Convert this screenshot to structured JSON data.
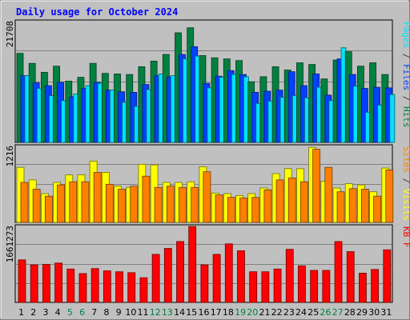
{
  "chart_data": {
    "type": "bar",
    "title": "Daily usage for October 2024",
    "x": [
      "1",
      "2",
      "3",
      "4",
      "5",
      "6",
      "7",
      "8",
      "9",
      "10",
      "11",
      "12",
      "13",
      "14",
      "15",
      "16",
      "17",
      "18",
      "19",
      "20",
      "21",
      "22",
      "23",
      "24",
      "25",
      "26",
      "27",
      "28",
      "29",
      "30",
      "31"
    ],
    "weekend_days": [
      "5",
      "6",
      "12",
      "13",
      "19",
      "20",
      "26",
      "27"
    ],
    "panels": [
      {
        "id": "hits",
        "scale_label": "21708",
        "ylim": [
          0,
          21708
        ],
        "series": [
          {
            "name": "Hits",
            "color": "#008040",
            "values": [
              16000,
              14200,
              12600,
              13700,
              11000,
              11700,
              14200,
              12400,
              12300,
              12200,
              13600,
              14600,
              15800,
              19700,
              20600,
              15600,
              15200,
              15000,
              14700,
              10900,
              11800,
              13600,
              13000,
              14300,
              14000,
              11400,
              14800,
              16300,
              13700,
              14300,
              12200
            ]
          },
          {
            "name": "Files",
            "color": "#0040ff",
            "values": [
              12000,
              10700,
              10200,
              10800,
              8200,
              9700,
              10800,
              9400,
              9100,
              9000,
              10400,
              12000,
              11800,
              15800,
              17200,
              10600,
              11900,
              12900,
              12200,
              9000,
              9200,
              9400,
              12700,
              10200,
              12300,
              8500,
              15000,
              12200,
              9700,
              9900,
              9800
            ]
          },
          {
            "name": "Pages",
            "color": "#00e0ff",
            "values": [
              12000,
              9700,
              8400,
              7500,
              8700,
              10200,
              10600,
              9400,
              7200,
              6500,
              9500,
              12300,
              12000,
              15000,
              15500,
              9800,
              11700,
              12200,
              11800,
              7000,
              7400,
              8100,
              8400,
              8000,
              9900,
              7500,
              17000,
              10100,
              5400,
              6700,
              8600
            ]
          }
        ],
        "axis_label": [
          {
            "text": "Pages",
            "color": "#00e0ff"
          },
          {
            "text": " / ",
            "color": "#404040"
          },
          {
            "text": "Files",
            "color": "#0040ff"
          },
          {
            "text": " / ",
            "color": "#404040"
          },
          {
            "text": "Hits",
            "color": "#008040"
          }
        ]
      },
      {
        "id": "visits",
        "scale_label": "1216",
        "ylim": [
          0,
          1216
        ],
        "series": [
          {
            "name": "Visits",
            "color": "#ffff00",
            "values": [
              880,
              680,
              460,
              640,
              760,
              760,
              980,
              800,
              580,
              560,
              930,
              920,
              640,
              640,
              650,
              890,
              470,
              460,
              430,
              460,
              550,
              780,
              860,
              860,
              1200,
              660,
              550,
              620,
              600,
              490,
              870
            ]
          },
          {
            "name": "Sites",
            "color": "#ff8000",
            "values": [
              640,
              530,
              420,
              600,
              650,
              650,
              800,
              610,
              530,
              580,
              740,
              560,
              580,
              560,
              560,
              810,
              440,
              400,
              390,
              400,
              520,
              680,
              710,
              650,
              1170,
              880,
              490,
              540,
              530,
              420,
              840
            ]
          }
        ],
        "axis_label": [
          {
            "text": "Sites",
            "color": "#ff8000"
          },
          {
            "text": " / ",
            "color": "#404040"
          },
          {
            "text": "Visits",
            "color": "#ffff00"
          }
        ]
      },
      {
        "id": "kbytes",
        "scale_label": "1661273",
        "ylim": [
          0,
          1661273
        ],
        "series": [
          {
            "name": "KB F",
            "color": "#ff0000",
            "values": [
              930000,
              820000,
              830000,
              860000,
              730000,
              630000,
              740000,
              690000,
              670000,
              650000,
              540000,
              1050000,
              1180000,
              1330000,
              1660000,
              820000,
              1050000,
              1280000,
              1130000,
              670000,
              670000,
              730000,
              1160000,
              800000,
              700000,
              700000,
              1330000,
              1110000,
              640000,
              720000,
              1150000
            ]
          }
        ],
        "axis_label": [
          {
            "text": "KB F",
            "color": "#ff0000"
          }
        ]
      }
    ]
  }
}
